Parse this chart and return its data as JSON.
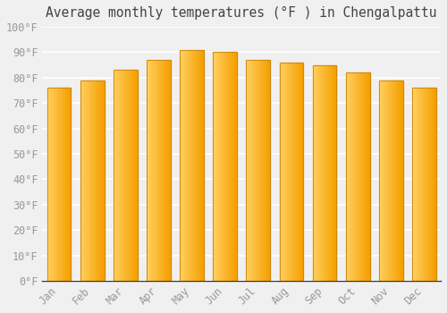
{
  "title": "Average monthly temperatures (°F ) in Chengalpattu",
  "months": [
    "Jan",
    "Feb",
    "Mar",
    "Apr",
    "May",
    "Jun",
    "Jul",
    "Aug",
    "Sep",
    "Oct",
    "Nov",
    "Dec"
  ],
  "values": [
    76,
    79,
    83,
    87,
    91,
    90,
    87,
    86,
    85,
    82,
    79,
    76
  ],
  "bar_color_left": "#FFD060",
  "bar_color_right": "#F5A000",
  "bar_edge_color": "#C8820A",
  "ylim": [
    0,
    100
  ],
  "yticks": [
    0,
    10,
    20,
    30,
    40,
    50,
    60,
    70,
    80,
    90,
    100
  ],
  "ytick_labels": [
    "0°F",
    "10°F",
    "20°F",
    "30°F",
    "40°F",
    "50°F",
    "60°F",
    "70°F",
    "80°F",
    "90°F",
    "100°F"
  ],
  "bg_color": "#f0f0f0",
  "grid_color": "#ffffff",
  "title_fontsize": 10.5,
  "tick_fontsize": 8.5,
  "font_family": "monospace",
  "tick_color": "#999999",
  "axis_color": "#333333"
}
